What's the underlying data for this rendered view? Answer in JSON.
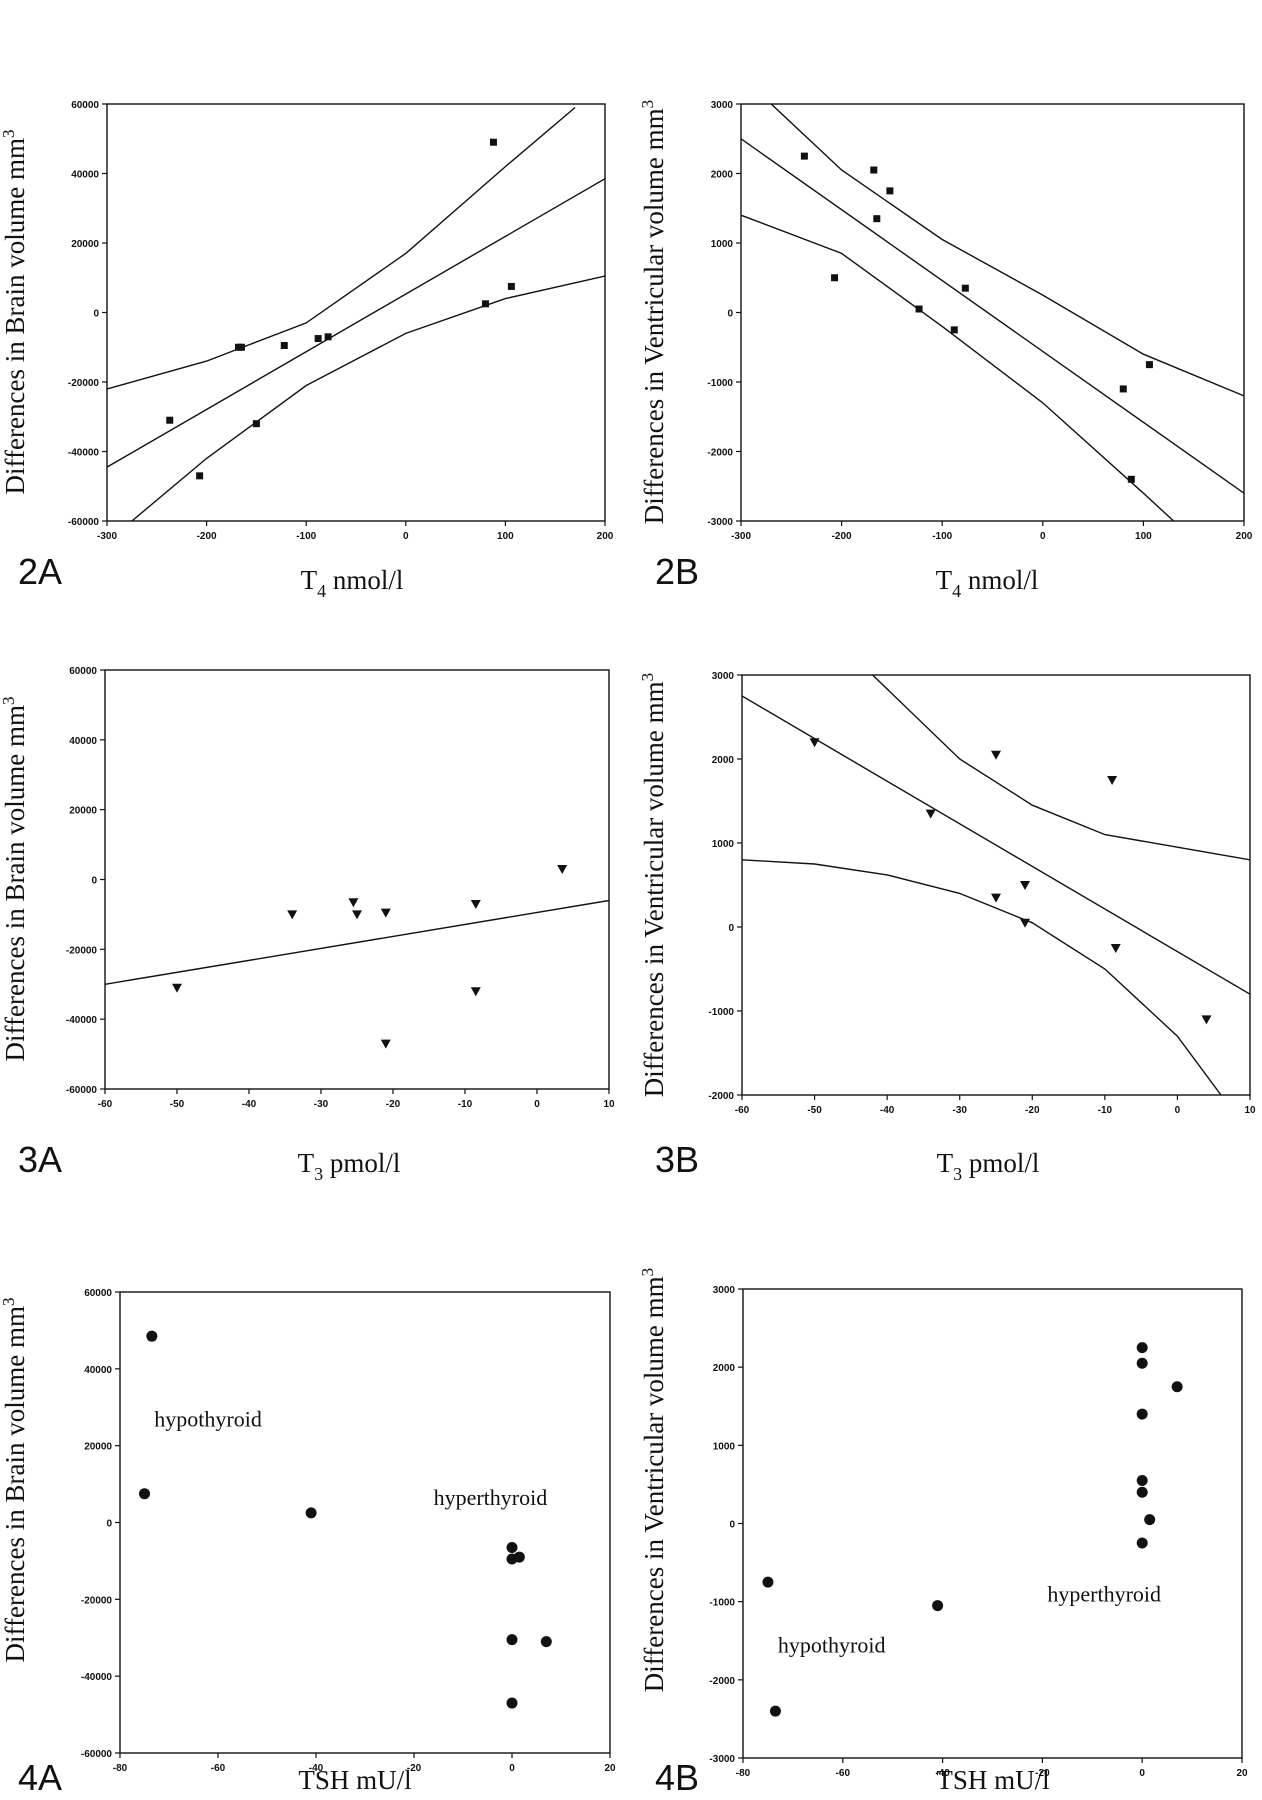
{
  "chart_data": [
    {
      "panel": "2A",
      "type": "scatter",
      "marker": "square",
      "ylabel": "Differences in Brain volume mm",
      "ylabel_sup": "3",
      "xlabel_main": "T",
      "xlabel_sub": "4",
      "xlabel_unit": " nmol/l",
      "xlim": [
        -300,
        200
      ],
      "ylim": [
        -60000,
        60000
      ],
      "xticks": [
        -300,
        -200,
        -100,
        0,
        100,
        200
      ],
      "yticks": [
        -60000,
        -40000,
        -20000,
        0,
        20000,
        40000,
        60000
      ],
      "points": [
        [
          -237,
          -31000
        ],
        [
          -207,
          -47000
        ],
        [
          -168,
          -10000
        ],
        [
          -165,
          -10000
        ],
        [
          -150,
          -32000
        ],
        [
          -122,
          -9500
        ],
        [
          -88,
          -7500
        ],
        [
          -78,
          -7000
        ],
        [
          80,
          2500
        ],
        [
          88,
          49000
        ],
        [
          106,
          7500
        ]
      ],
      "fit": [
        [
          -300,
          -44500
        ],
        [
          200,
          38500
        ]
      ],
      "ci_upper": [
        [
          -300,
          -22000
        ],
        [
          -200,
          -14000
        ],
        [
          -100,
          -3000
        ],
        [
          0,
          17000
        ],
        [
          100,
          42000
        ],
        [
          170,
          59000
        ]
      ],
      "ci_lower": [
        [
          -275,
          -60000
        ],
        [
          -200,
          -42000
        ],
        [
          -100,
          -21000
        ],
        [
          0,
          -6000
        ],
        [
          100,
          4000
        ],
        [
          200,
          10500
        ]
      ],
      "annotations": []
    },
    {
      "panel": "2B",
      "type": "scatter",
      "marker": "square",
      "ylabel": "Differences in Ventricular volume mm",
      "ylabel_sup": "3",
      "xlabel_main": "T",
      "xlabel_sub": "4",
      "xlabel_unit": " nmol/l",
      "xlim": [
        -300,
        200
      ],
      "ylim": [
        -3000,
        3000
      ],
      "xticks": [
        -300,
        -200,
        -100,
        0,
        100,
        200
      ],
      "yticks": [
        -3000,
        -2000,
        -1000,
        0,
        1000,
        2000,
        3000
      ],
      "points": [
        [
          -237,
          2250
        ],
        [
          -207,
          500
        ],
        [
          -168,
          2050
        ],
        [
          -165,
          1350
        ],
        [
          -152,
          1750
        ],
        [
          -123,
          50
        ],
        [
          -88,
          -250
        ],
        [
          -77,
          350
        ],
        [
          80,
          -1100
        ],
        [
          88,
          -2400
        ],
        [
          106,
          -750
        ]
      ],
      "fit": [
        [
          -300,
          2500
        ],
        [
          200,
          -2600
        ]
      ],
      "ci_upper": [
        [
          -270,
          3000
        ],
        [
          -200,
          2050
        ],
        [
          -100,
          1050
        ],
        [
          0,
          250
        ],
        [
          100,
          -600
        ],
        [
          200,
          -1200
        ]
      ],
      "ci_lower": [
        [
          -300,
          1400
        ],
        [
          -200,
          850
        ],
        [
          -100,
          -200
        ],
        [
          0,
          -1300
        ],
        [
          100,
          -2600
        ],
        [
          130,
          -3000
        ]
      ],
      "annotations": []
    },
    {
      "panel": "3A",
      "type": "scatter",
      "marker": "triangle",
      "ylabel": "Differences in Brain volume mm",
      "ylabel_sup": "3",
      "xlabel_main": "T",
      "xlabel_sub": "3",
      "xlabel_unit": " pmol/l",
      "xlim": [
        -60,
        10
      ],
      "ylim": [
        -60000,
        60000
      ],
      "xticks": [
        -60,
        -50,
        -40,
        -30,
        -20,
        -10,
        0,
        10
      ],
      "yticks": [
        -60000,
        -40000,
        -20000,
        0,
        20000,
        40000,
        60000
      ],
      "points": [
        [
          -50,
          -31000
        ],
        [
          -34,
          -10000
        ],
        [
          -25.5,
          -6500
        ],
        [
          -25,
          -10000
        ],
        [
          -21,
          -9500
        ],
        [
          -21,
          -47000
        ],
        [
          -8.5,
          -7000
        ],
        [
          -8.5,
          -32000
        ],
        [
          3.5,
          3000
        ]
      ],
      "fit": [
        [
          -60,
          -30000
        ],
        [
          10,
          -6000
        ]
      ],
      "ci_upper": [],
      "ci_lower": [],
      "annotations": []
    },
    {
      "panel": "3B",
      "type": "scatter",
      "marker": "triangle",
      "ylabel": "Differences in Ventricular volume mm",
      "ylabel_sup": "3",
      "xlabel_main": "T",
      "xlabel_sub": "3",
      "xlabel_unit": " pmol/l",
      "xlim": [
        -60,
        10
      ],
      "ylim": [
        -2000,
        3000
      ],
      "xticks": [
        -60,
        -50,
        -40,
        -30,
        -20,
        -10,
        0,
        10
      ],
      "yticks": [
        -2000,
        -1000,
        0,
        1000,
        2000,
        3000
      ],
      "points": [
        [
          -50,
          2200
        ],
        [
          -34,
          1350
        ],
        [
          -25,
          2050
        ],
        [
          -25,
          350
        ],
        [
          -21,
          500
        ],
        [
          -21,
          50
        ],
        [
          -9,
          1750
        ],
        [
          -8.5,
          -250
        ],
        [
          4,
          -1100
        ]
      ],
      "fit": [
        [
          -60,
          2750
        ],
        [
          10,
          -800
        ]
      ],
      "ci_upper": [
        [
          -42,
          3000
        ],
        [
          -30,
          2000
        ],
        [
          -20,
          1450
        ],
        [
          -10,
          1100
        ],
        [
          0,
          950
        ],
        [
          10,
          800
        ]
      ],
      "ci_lower": [
        [
          -60,
          800
        ],
        [
          -50,
          750
        ],
        [
          -40,
          620
        ],
        [
          -30,
          400
        ],
        [
          -20,
          50
        ],
        [
          -10,
          -500
        ],
        [
          0,
          -1300
        ],
        [
          6,
          -2000
        ]
      ],
      "annotations": []
    },
    {
      "panel": "4A",
      "type": "scatter",
      "marker": "circle",
      "ylabel": "Differences in Brain volume mm",
      "ylabel_sup": "3",
      "xlabel_main": "TSH mU/l",
      "xlabel_sub": "",
      "xlabel_unit": "",
      "xlim": [
        -80,
        20
      ],
      "ylim": [
        -60000,
        60000
      ],
      "xticks": [
        -80,
        -60,
        -40,
        -20,
        0,
        20
      ],
      "yticks": [
        -60000,
        -40000,
        -20000,
        0,
        20000,
        40000,
        60000
      ],
      "points": [
        [
          -73.5,
          48500
        ],
        [
          -75,
          7500
        ],
        [
          -41,
          2500
        ],
        [
          0,
          -6500
        ],
        [
          0,
          -9500
        ],
        [
          1.5,
          -9000
        ],
        [
          0,
          -30500
        ],
        [
          7,
          -31000
        ],
        [
          0,
          -47000
        ]
      ],
      "fit": [],
      "ci_upper": [],
      "ci_lower": [],
      "annotations": [
        {
          "text": "hypothyroid",
          "x": -73,
          "y": 25000
        },
        {
          "text": "hyperthyroid",
          "x": -16,
          "y": 4500
        }
      ]
    },
    {
      "panel": "4B",
      "type": "scatter",
      "marker": "circle",
      "ylabel": "Differences in Ventricular volume mm",
      "ylabel_sup": "3",
      "xlabel_main": "TSH mU/l",
      "xlabel_sub": "",
      "xlabel_unit": "",
      "xlim": [
        -80,
        20
      ],
      "ylim": [
        -3000,
        3000
      ],
      "xticks": [
        -80,
        -60,
        -40,
        -20,
        0,
        20
      ],
      "yticks": [
        -3000,
        -2000,
        -1000,
        0,
        1000,
        2000,
        3000
      ],
      "points": [
        [
          -75,
          -750
        ],
        [
          -73.5,
          -2400
        ],
        [
          -41,
          -1050
        ],
        [
          0,
          2250
        ],
        [
          0,
          2050
        ],
        [
          0,
          1400
        ],
        [
          7,
          1750
        ],
        [
          0,
          550
        ],
        [
          0,
          400
        ],
        [
          1.5,
          50
        ],
        [
          0,
          -250
        ]
      ],
      "fit": [],
      "ci_upper": [],
      "ci_lower": [],
      "annotations": [
        {
          "text": "hypothyroid",
          "x": -73,
          "y": -1650
        },
        {
          "text": "hyperthyroid",
          "x": -19,
          "y": -1000
        }
      ]
    }
  ]
}
